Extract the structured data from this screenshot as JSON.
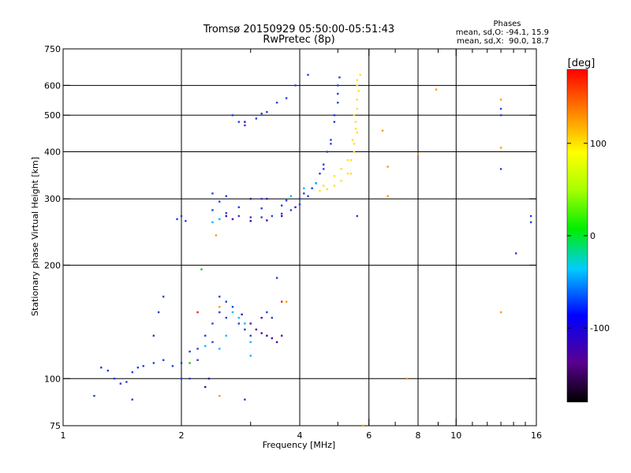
{
  "chart_data": {
    "type": "scatter",
    "title": "Tromsø 20150929 05:50:00-05:51:43",
    "subtitle": "RwPretec (8p)",
    "stats": {
      "header": "Phases",
      "line_o": "mean, sd,O: -94.1, 15.9",
      "line_x": "mean, sd,X:  90.0, 18.7"
    },
    "xlabel": "Frequency [MHz]",
    "ylabel": "Stationary phase Virtual Height [km]",
    "x_scale": "log",
    "y_scale": "log",
    "xlim": [
      1,
      16
    ],
    "ylim": [
      75,
      750
    ],
    "x_ticks": [
      1,
      2,
      4,
      6,
      8,
      10,
      16
    ],
    "x_tick_labels": [
      "1",
      "2",
      "4",
      "6",
      "8",
      "10",
      "16"
    ],
    "x_minor_ticks": [
      3,
      5,
      7,
      9,
      11,
      12,
      13,
      14,
      15
    ],
    "y_ticks": [
      75,
      100,
      200,
      300,
      400,
      500,
      600,
      750
    ],
    "y_tick_labels": [
      "75",
      "100",
      "200",
      "300",
      "400",
      "500",
      "600",
      "750"
    ],
    "grid": true,
    "colorbar": {
      "label": "[deg]",
      "range": [
        -180,
        180
      ],
      "ticks": [
        100,
        0,
        -100
      ],
      "tick_labels": [
        "100",
        "0",
        "-100"
      ]
    },
    "series": [
      {
        "color": "#2040e0",
        "points": [
          [
            2.4,
            280
          ],
          [
            2.6,
            275
          ],
          [
            2.8,
            270
          ],
          [
            3.0,
            268
          ],
          [
            3.2,
            268
          ],
          [
            3.4,
            270
          ],
          [
            3.6,
            274
          ],
          [
            3.8,
            280
          ],
          [
            4.0,
            290
          ],
          [
            4.2,
            305
          ],
          [
            4.4,
            330
          ],
          [
            4.6,
            370
          ],
          [
            4.8,
            430
          ],
          [
            4.9,
            500
          ],
          [
            5.0,
            570
          ],
          [
            5.05,
            630
          ],
          [
            2.5,
            295
          ],
          [
            2.8,
            285
          ],
          [
            3.2,
            283
          ],
          [
            3.6,
            288
          ],
          [
            4.0,
            300
          ],
          [
            4.3,
            320
          ],
          [
            4.6,
            360
          ],
          [
            4.8,
            420
          ],
          [
            4.9,
            480
          ],
          [
            5.0,
            540
          ],
          [
            5.0,
            600
          ],
          [
            2.4,
            310
          ],
          [
            2.6,
            305
          ],
          [
            3.2,
            300
          ],
          [
            3.7,
            297
          ],
          [
            4.1,
            310
          ],
          [
            4.5,
            350
          ],
          [
            4.7,
            400
          ],
          [
            2.7,
            500
          ],
          [
            2.8,
            480
          ],
          [
            2.9,
            470
          ],
          [
            3.1,
            490
          ],
          [
            3.2,
            505
          ],
          [
            3.3,
            510
          ],
          [
            3.5,
            540
          ],
          [
            3.7,
            555
          ],
          [
            3.9,
            600
          ],
          [
            4.2,
            640
          ],
          [
            1.95,
            265
          ],
          [
            2.0,
            270
          ],
          [
            2.05,
            262
          ],
          [
            1.25,
            107
          ],
          [
            1.3,
            105
          ],
          [
            1.35,
            100
          ],
          [
            1.4,
            97
          ],
          [
            1.45,
            98
          ],
          [
            1.5,
            104
          ],
          [
            1.55,
            107
          ],
          [
            1.6,
            108
          ],
          [
            1.7,
            110
          ],
          [
            1.8,
            112
          ],
          [
            1.9,
            108
          ],
          [
            2.0,
            110
          ],
          [
            2.1,
            118
          ],
          [
            2.2,
            112
          ],
          [
            2.3,
            130
          ],
          [
            2.4,
            140
          ],
          [
            2.5,
            150
          ],
          [
            2.6,
            145
          ],
          [
            2.7,
            155
          ],
          [
            2.8,
            140
          ],
          [
            2.9,
            135
          ],
          [
            3.0,
            130
          ],
          [
            2.5,
            165
          ],
          [
            2.6,
            160
          ],
          [
            2.4,
            125
          ],
          [
            2.2,
            120
          ],
          [
            2.0,
            100
          ],
          [
            2.1,
            100
          ],
          [
            1.75,
            150
          ],
          [
            1.8,
            165
          ],
          [
            1.7,
            130
          ],
          [
            3.3,
            150
          ],
          [
            3.4,
            145
          ],
          [
            3.5,
            185
          ],
          [
            1.2,
            90
          ],
          [
            1.5,
            88
          ],
          [
            2.9,
            88
          ],
          [
            5.6,
            270
          ],
          [
            13.0,
            500
          ],
          [
            13.0,
            520
          ],
          [
            13.0,
            360
          ],
          [
            14.2,
            215
          ],
          [
            15.5,
            270
          ],
          [
            15.5,
            260
          ]
        ]
      },
      {
        "color": "#4a0aa8",
        "points": [
          [
            2.7,
            265
          ],
          [
            3.0,
            262
          ],
          [
            3.3,
            263
          ],
          [
            3.6,
            270
          ],
          [
            3.9,
            285
          ],
          [
            2.6,
            270
          ],
          [
            2.9,
            480
          ],
          [
            3.3,
            300
          ],
          [
            3.0,
            300
          ],
          [
            3.0,
            140
          ],
          [
            3.1,
            135
          ],
          [
            3.2,
            132
          ],
          [
            3.3,
            130
          ],
          [
            3.4,
            128
          ],
          [
            3.5,
            125
          ],
          [
            3.6,
            130
          ],
          [
            3.2,
            145
          ],
          [
            2.85,
            148
          ],
          [
            2.3,
            95
          ],
          [
            2.35,
            100
          ]
        ]
      },
      {
        "color": "#00b8ff",
        "points": [
          [
            2.4,
            260
          ],
          [
            2.5,
            265
          ],
          [
            3.8,
            305
          ],
          [
            4.1,
            320
          ],
          [
            4.4,
            330
          ],
          [
            2.7,
            150
          ],
          [
            2.8,
            145
          ],
          [
            3.0,
            125
          ],
          [
            2.5,
            120
          ],
          [
            2.6,
            130
          ],
          [
            2.9,
            140
          ],
          [
            3.0,
            115
          ],
          [
            2.3,
            122
          ]
        ]
      },
      {
        "color": "#ffe020",
        "points": [
          [
            4.5,
            315
          ],
          [
            4.7,
            318
          ],
          [
            4.9,
            325
          ],
          [
            5.1,
            335
          ],
          [
            5.3,
            350
          ],
          [
            5.4,
            380
          ],
          [
            5.5,
            420
          ],
          [
            5.55,
            460
          ],
          [
            5.6,
            520
          ],
          [
            5.65,
            580
          ],
          [
            5.7,
            640
          ],
          [
            4.6,
            325
          ],
          [
            4.9,
            345
          ],
          [
            5.1,
            360
          ],
          [
            5.3,
            380
          ],
          [
            5.45,
            430
          ],
          [
            5.55,
            480
          ],
          [
            5.6,
            550
          ],
          [
            5.6,
            620
          ],
          [
            5.6,
            600
          ],
          [
            5.5,
            500
          ],
          [
            5.4,
            350
          ],
          [
            5.5,
            400
          ],
          [
            5.6,
            450
          ]
        ]
      },
      {
        "color": "#ff9a00",
        "points": [
          [
            6.5,
            455
          ],
          [
            6.7,
            365
          ],
          [
            6.7,
            305
          ],
          [
            7.5,
            100
          ],
          [
            8.0,
            395
          ],
          [
            8.9,
            585
          ],
          [
            13.0,
            550
          ],
          [
            13.0,
            410
          ],
          [
            13.0,
            150
          ],
          [
            2.45,
            240
          ],
          [
            2.5,
            90
          ],
          [
            2.5,
            155
          ],
          [
            3.7,
            160
          ],
          [
            5.8,
            75
          ]
        ]
      },
      {
        "color": "#22bb22",
        "points": [
          [
            2.1,
            110
          ],
          [
            2.25,
            195
          ]
        ]
      },
      {
        "color": "#ff2020",
        "points": [
          [
            2.2,
            150
          ],
          [
            3.6,
            160
          ]
        ]
      }
    ]
  }
}
